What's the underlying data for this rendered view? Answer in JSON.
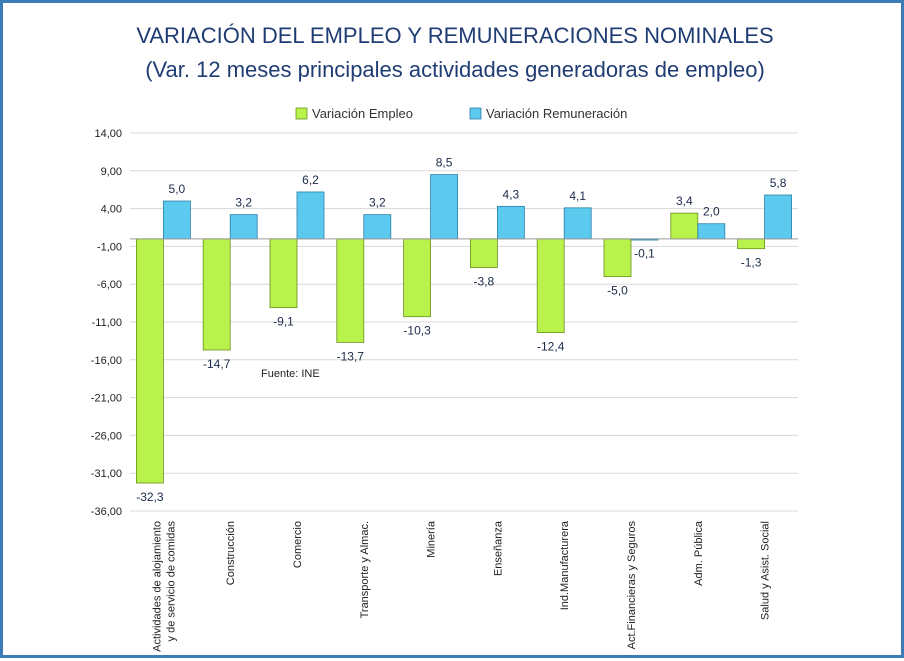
{
  "chart_data": {
    "type": "bar",
    "title": "VARIACIÓN DEL EMPLEO Y REMUNERACIONES NOMINALES",
    "subtitle": "(Var. 12 meses principales actividades generadoras de empleo)",
    "note": "Fuente: INE",
    "categories": [
      "Actividades de alojamiento y de servicio de comidas",
      "Construcción",
      "Comercio",
      "Transporte y Almac.",
      "Minería",
      "Enseñanza",
      "Ind.Manufacturera",
      "Act.Financieras y Seguros",
      "Adm. Pública",
      "Salud y Asist. Social"
    ],
    "category_lines": [
      [
        "Actividades de alojamiento",
        "y de servicio de comidas"
      ],
      [
        "Construcción"
      ],
      [
        "Comercio"
      ],
      [
        "Transporte y Almac."
      ],
      [
        "Minería"
      ],
      [
        "Enseñanza"
      ],
      [
        "Ind.Manufacturera"
      ],
      [
        "Act.Financieras y Seguros"
      ],
      [
        "Adm. Pública"
      ],
      [
        "Salud y Asist. Social"
      ]
    ],
    "series": [
      {
        "name": "Variación Empleo",
        "color": "#b9f24a",
        "stroke": "#6a8f1e",
        "values": [
          -32.3,
          -14.7,
          -9.1,
          -13.7,
          -10.3,
          -3.8,
          -12.4,
          -5.0,
          3.4,
          -1.3
        ],
        "labels": [
          "-32,3",
          "-14,7",
          "-9,1",
          "-13,7",
          "-10,3",
          "-3,8",
          "-12,4",
          "-5,0",
          "3,4",
          "-1,3"
        ]
      },
      {
        "name": "Variación Remuneración",
        "color": "#5cc9ee",
        "stroke": "#2a7fa8",
        "values": [
          5.0,
          3.2,
          6.2,
          3.2,
          8.5,
          4.3,
          4.1,
          -0.1,
          2.0,
          5.8
        ],
        "labels": [
          "5,0",
          "3,2",
          "6,2",
          "3,2",
          "8,5",
          "4,3",
          "4,1",
          "-0,1",
          "2,0",
          "5,8"
        ]
      }
    ],
    "yticks": [
      14,
      9,
      4,
      -1,
      -6,
      -11,
      -16,
      -21,
      -26,
      -31,
      -36
    ],
    "ytick_labels": [
      "14,00",
      "9,00",
      "4,00",
      "-1,00",
      "-6,00",
      "-11,00",
      "-16,00",
      "-21,00",
      "-26,00",
      "-31,00",
      "-36,00"
    ],
    "ylim": [
      -36,
      14
    ],
    "grid": true,
    "legend_position": "top-center"
  }
}
